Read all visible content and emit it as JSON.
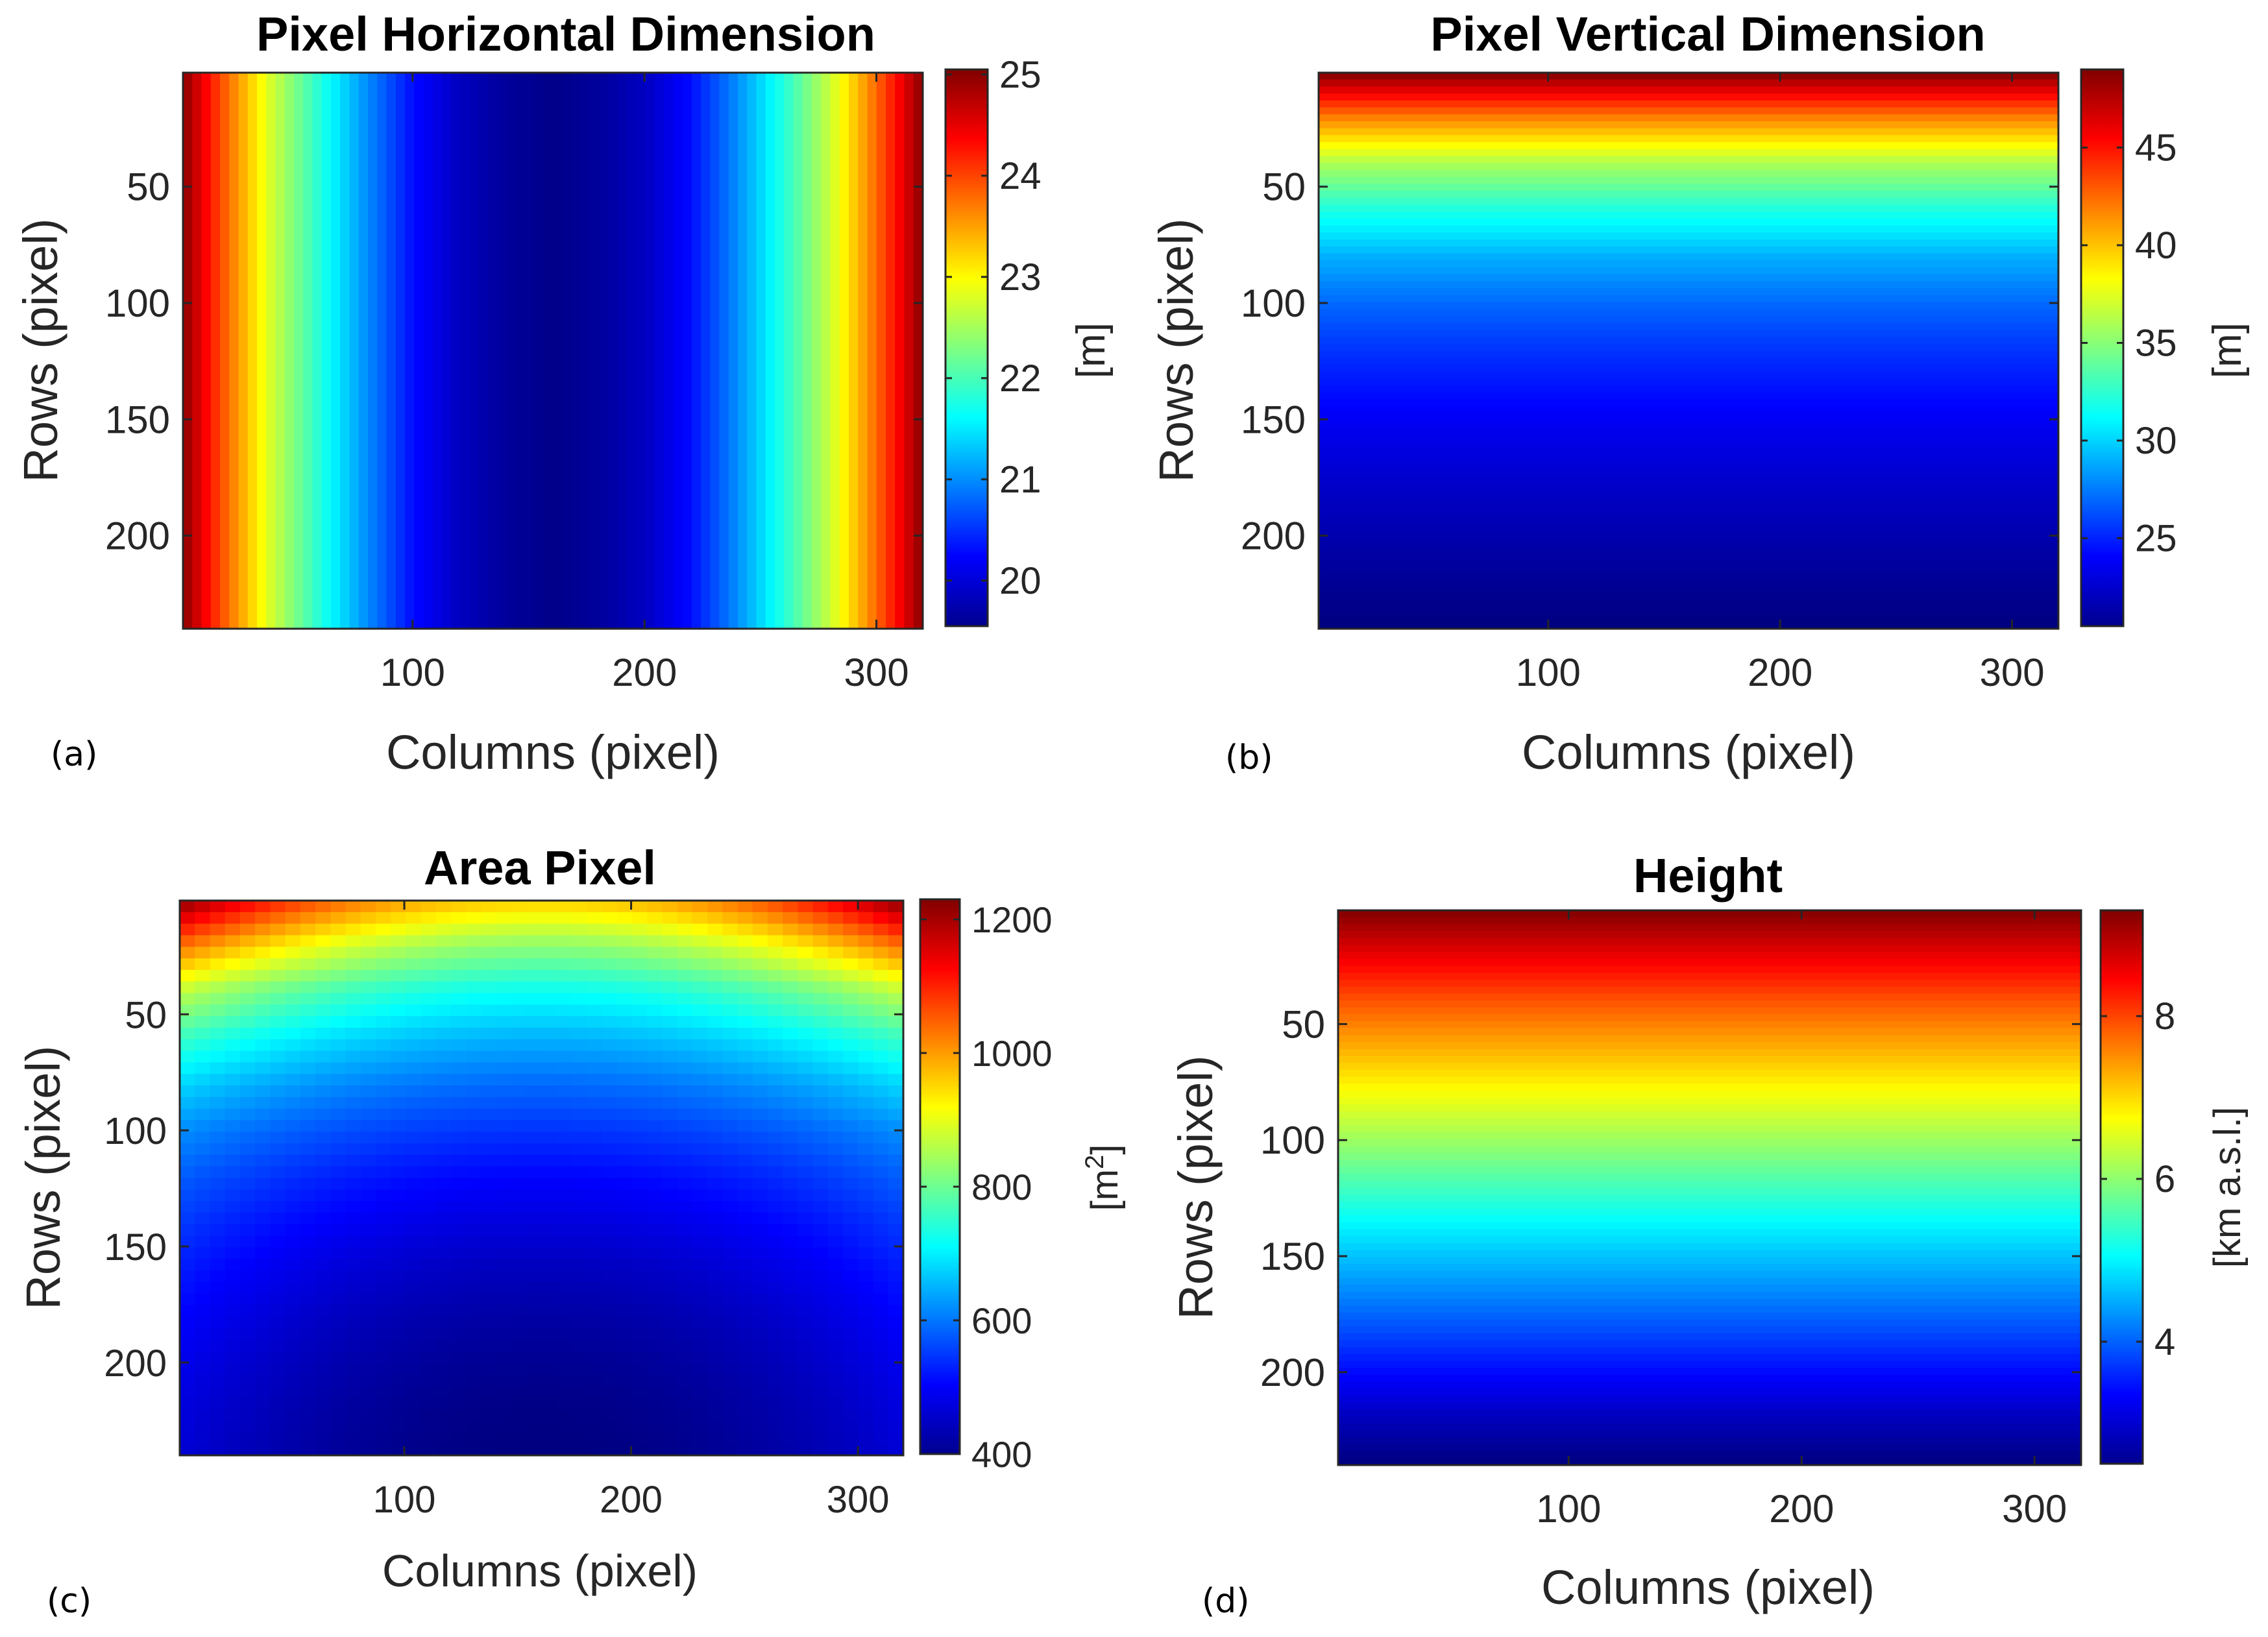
{
  "chart_data": [
    {
      "type": "heatmap",
      "panel_label": "(a)",
      "title": "Pixel Horizontal Dimension",
      "xlabel": "Columns (pixel)",
      "ylabel": "Rows (pixel)",
      "xlim": [
        1,
        320
      ],
      "ylim": [
        1,
        240
      ],
      "y_reversed": true,
      "xticks": [
        100,
        200,
        300
      ],
      "yticks": [
        50,
        100,
        150,
        200
      ],
      "colormap": "jet",
      "field": "symmetric-columns",
      "colorbar": {
        "label": "[m]",
        "label_sup": "",
        "range": [
          19.55,
          25.05
        ],
        "ticks": [
          20,
          21,
          22,
          23,
          24,
          25
        ]
      },
      "profile": {
        "axis": "x",
        "x": [
          1,
          20,
          40,
          60,
          80,
          100,
          120,
          140,
          160,
          180,
          200,
          220,
          240,
          260,
          280,
          300,
          320
        ],
        "values": [
          25.0,
          23.8,
          22.7,
          21.8,
          21.0,
          20.3,
          19.9,
          19.7,
          19.6,
          19.7,
          19.9,
          20.3,
          21.0,
          21.8,
          22.7,
          23.8,
          25.0
        ]
      }
    },
    {
      "type": "heatmap",
      "panel_label": "(b)",
      "title": "Pixel Vertical Dimension",
      "xlabel": "Columns (pixel)",
      "ylabel": "Rows (pixel)",
      "xlim": [
        1,
        320
      ],
      "ylim": [
        1,
        240
      ],
      "y_reversed": true,
      "xticks": [
        100,
        200,
        300
      ],
      "yticks": [
        50,
        100,
        150,
        200
      ],
      "colormap": "jet",
      "field": "rows",
      "colorbar": {
        "label": "[m]",
        "label_sup": "",
        "range": [
          20.5,
          49
        ],
        "ticks": [
          25,
          30,
          35,
          40,
          45
        ]
      },
      "profile": {
        "axis": "y",
        "y": [
          1,
          20,
          40,
          60,
          80,
          100,
          120,
          140,
          160,
          180,
          200,
          220,
          240
        ],
        "values": [
          49.0,
          42.0,
          36.0,
          32.0,
          29.0,
          27.0,
          25.5,
          24.3,
          23.3,
          22.5,
          21.8,
          21.1,
          20.5
        ]
      }
    },
    {
      "type": "heatmap",
      "panel_label": "(c)",
      "title": "Area Pixel",
      "xlabel": "Columns (pixel)",
      "ylabel": "Rows (pixel)",
      "xlim": [
        1,
        320
      ],
      "ylim": [
        1,
        240
      ],
      "y_reversed": true,
      "xticks": [
        100,
        200,
        300
      ],
      "yticks": [
        50,
        100,
        150,
        200
      ],
      "colormap": "jet",
      "field": "rows-times-columns",
      "colorbar": {
        "label": "[m",
        "label_sup": "2",
        "label_end": "]",
        "range": [
          400,
          1230
        ],
        "ticks": [
          400,
          600,
          800,
          1000,
          1200
        ]
      },
      "profile": {
        "center_column": 160,
        "edge_column_values": [
          1225,
          1040,
          870,
          760,
          680,
          620,
          580,
          550,
          525,
          505,
          490,
          478,
          470
        ],
        "center_column_values": [
          960,
          830,
          720,
          650,
          590,
          545,
          505,
          475,
          450,
          430,
          415,
          405,
          400
        ],
        "y": [
          1,
          20,
          40,
          60,
          80,
          100,
          120,
          140,
          160,
          180,
          200,
          220,
          240
        ]
      }
    },
    {
      "type": "heatmap",
      "panel_label": "(d)",
      "title": "Height",
      "xlabel": "Columns (pixel)",
      "ylabel": "Rows (pixel)",
      "xlim": [
        1,
        320
      ],
      "ylim": [
        1,
        240
      ],
      "y_reversed": true,
      "xticks": [
        100,
        200,
        300
      ],
      "yticks": [
        50,
        100,
        150,
        200
      ],
      "colormap": "jet",
      "field": "rows",
      "colorbar": {
        "label": "[km a.s.l.]",
        "label_sup": "",
        "range": [
          2.5,
          9.3
        ],
        "ticks": [
          4,
          6,
          8
        ]
      },
      "profile": {
        "axis": "y",
        "y": [
          1,
          20,
          40,
          60,
          80,
          100,
          120,
          140,
          160,
          180,
          200,
          220,
          240
        ],
        "values": [
          9.3,
          8.6,
          7.9,
          7.3,
          6.7,
          6.1,
          5.5,
          4.9,
          4.4,
          3.9,
          3.4,
          2.9,
          2.5
        ]
      }
    }
  ]
}
